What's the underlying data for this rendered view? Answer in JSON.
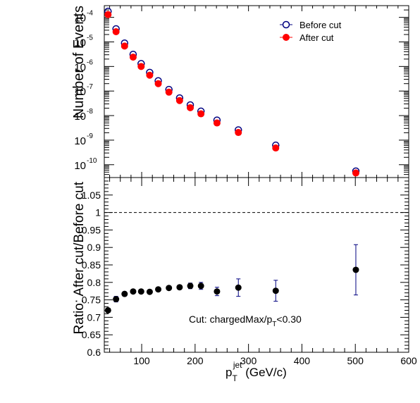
{
  "chart_data": [
    {
      "type": "scatter",
      "yscale": "log",
      "ylabel": "Number of Events",
      "xlim": [
        30,
        600
      ],
      "ylim": [
        3e-11,
        0.0003
      ],
      "y_ticks": [
        {
          "value": 1e-10,
          "mantissa": "10",
          "exp": "-10"
        },
        {
          "value": 1e-09,
          "mantissa": "10",
          "exp": "-9"
        },
        {
          "value": 1e-08,
          "mantissa": "10",
          "exp": "-8"
        },
        {
          "value": 1e-07,
          "mantissa": "10",
          "exp": "-7"
        },
        {
          "value": 1e-06,
          "mantissa": "10",
          "exp": "-6"
        },
        {
          "value": 1e-05,
          "mantissa": "10",
          "exp": "-5"
        },
        {
          "value": 0.0001,
          "mantissa": "10",
          "exp": "-4"
        }
      ],
      "legend": {
        "placement": "top-right"
      },
      "x": [
        37,
        52,
        68,
        84,
        99,
        115,
        131,
        151,
        171,
        191,
        211,
        241,
        281,
        351,
        501
      ],
      "series": [
        {
          "name": "Before cut",
          "marker": "open-circle",
          "color": "#000080",
          "values": [
            0.000175,
            3.4e-05,
            8.9e-06,
            3.1e-06,
            1.3e-06,
            5.7e-07,
            2.6e-07,
            1.15e-07,
            5.2e-08,
            2.7e-08,
            1.5e-08,
            6.5e-09,
            2.6e-09,
            6.2e-10,
            5.5e-11
          ]
        },
        {
          "name": "After cut",
          "marker": "filled-circle",
          "color": "#ff0000",
          "values": [
            0.00013,
            2.6e-05,
            6.8e-06,
            2.4e-06,
            1e-06,
            4.4e-07,
            2e-07,
            9e-08,
            4.1e-08,
            2.1e-08,
            1.18e-08,
            5e-09,
            2.05e-09,
            4.8e-10,
            4.6e-11
          ]
        }
      ]
    },
    {
      "type": "scatter",
      "xlabel_main": "p",
      "xlabel_sub": "T",
      "xlabel_sup": "jet",
      "xlabel_unit": " (GeV/c)",
      "ylabel": "Ratio: After cut/Before cut",
      "xlim": [
        30,
        600
      ],
      "ylim": [
        0.6,
        1.1
      ],
      "x_ticks": [
        "100",
        "200",
        "300",
        "400",
        "500",
        "600"
      ],
      "x_tick_values": [
        100,
        200,
        300,
        400,
        500,
        600
      ],
      "y_ticks": [
        "0.6",
        "0.65",
        "0.7",
        "0.75",
        "0.8",
        "0.85",
        "0.9",
        "0.95",
        "1",
        "1.05"
      ],
      "y_tick_values": [
        0.6,
        0.65,
        0.7,
        0.75,
        0.8,
        0.85,
        0.9,
        0.95,
        1.0,
        1.05
      ],
      "reference_line": 1.0,
      "annotation": {
        "text": "Cut: chargedMax/p",
        "sub": "T",
        "tail": "<0.30"
      },
      "marker_color": "#000000",
      "errorbar_color": "#000080",
      "x": [
        37,
        52,
        68,
        84,
        99,
        115,
        131,
        151,
        171,
        191,
        211,
        241,
        281,
        351,
        501
      ],
      "values": [
        0.72,
        0.752,
        0.767,
        0.774,
        0.774,
        0.773,
        0.78,
        0.784,
        0.786,
        0.79,
        0.79,
        0.774,
        0.785,
        0.776,
        0.836
      ],
      "errors": [
        0.006,
        0.008,
        0.006,
        0.005,
        0.005,
        0.004,
        0.005,
        0.005,
        0.006,
        0.008,
        0.01,
        0.012,
        0.025,
        0.03,
        0.072
      ]
    }
  ]
}
